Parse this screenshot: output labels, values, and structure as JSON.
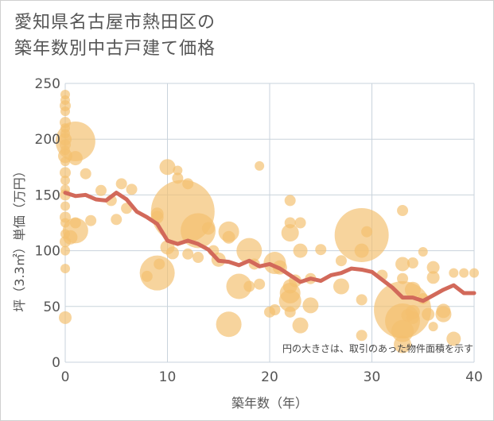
{
  "chart_data": {
    "type": "scatter",
    "title": "愛知県名古屋市熱田区の築年数別中古戸建て価格",
    "title_lines": [
      "愛知県名古屋市熱田区の",
      "築年数別中古戸建て価格"
    ],
    "xlabel": "築年数（年）",
    "ylabel": "坪（3.3㎡）単価（万円）",
    "xlim": [
      0,
      40
    ],
    "ylim": [
      0,
      250
    ],
    "x_ticks": [
      "0",
      "10",
      "20",
      "30",
      "40"
    ],
    "y_ticks": [
      "0",
      "50",
      "100",
      "150",
      "200",
      "250"
    ],
    "grid": true,
    "note": "円の大きさは、取引のあった物件面積を示す",
    "bubble_color": "#f3c06e",
    "line_color": "#d2695a",
    "bubbles": [
      {
        "x": 0,
        "y": 240,
        "s": 6
      },
      {
        "x": 0,
        "y": 235,
        "s": 6
      },
      {
        "x": 0,
        "y": 230,
        "s": 7
      },
      {
        "x": 0,
        "y": 225,
        "s": 6
      },
      {
        "x": 0,
        "y": 215,
        "s": 7
      },
      {
        "x": 0,
        "y": 210,
        "s": 6
      },
      {
        "x": 0,
        "y": 205,
        "s": 6
      },
      {
        "x": 0,
        "y": 200,
        "s": 8
      },
      {
        "x": 0,
        "y": 195,
        "s": 7
      },
      {
        "x": 0,
        "y": 190,
        "s": 6
      },
      {
        "x": 0,
        "y": 185,
        "s": 9
      },
      {
        "x": 0,
        "y": 180,
        "s": 6
      },
      {
        "x": 0,
        "y": 170,
        "s": 7
      },
      {
        "x": 0,
        "y": 163,
        "s": 6
      },
      {
        "x": 0,
        "y": 155,
        "s": 6
      },
      {
        "x": 0,
        "y": 150,
        "s": 7
      },
      {
        "x": 0,
        "y": 140,
        "s": 6
      },
      {
        "x": 0,
        "y": 130,
        "s": 7
      },
      {
        "x": 0,
        "y": 125,
        "s": 6
      },
      {
        "x": 0,
        "y": 115,
        "s": 6
      },
      {
        "x": 0,
        "y": 108,
        "s": 7
      },
      {
        "x": 0,
        "y": 100,
        "s": 6
      },
      {
        "x": 0,
        "y": 84,
        "s": 6
      },
      {
        "x": 0,
        "y": 40,
        "s": 8
      },
      {
        "x": 1,
        "y": 198,
        "s": 25
      },
      {
        "x": 1,
        "y": 183,
        "s": 9
      },
      {
        "x": 1,
        "y": 118,
        "s": 16
      },
      {
        "x": 1,
        "y": 125,
        "s": 7
      },
      {
        "x": 0.5,
        "y": 112,
        "s": 9
      },
      {
        "x": 2,
        "y": 169,
        "s": 7
      },
      {
        "x": 2.5,
        "y": 127,
        "s": 7
      },
      {
        "x": 3.5,
        "y": 154,
        "s": 7
      },
      {
        "x": 4.5,
        "y": 145,
        "s": 7
      },
      {
        "x": 5,
        "y": 128,
        "s": 7
      },
      {
        "x": 5.5,
        "y": 160,
        "s": 7
      },
      {
        "x": 6,
        "y": 138,
        "s": 7
      },
      {
        "x": 6.5,
        "y": 155,
        "s": 7
      },
      {
        "x": 9,
        "y": 130,
        "s": 8
      },
      {
        "x": 9,
        "y": 133,
        "s": 8
      },
      {
        "x": 9,
        "y": 80,
        "s": 22
      },
      {
        "x": 9.2,
        "y": 88,
        "s": 7
      },
      {
        "x": 8,
        "y": 77,
        "s": 7
      },
      {
        "x": 10,
        "y": 175,
        "s": 10
      },
      {
        "x": 10,
        "y": 103,
        "s": 9
      },
      {
        "x": 10.5,
        "y": 98,
        "s": 8
      },
      {
        "x": 11,
        "y": 165,
        "s": 7
      },
      {
        "x": 11,
        "y": 172,
        "s": 6
      },
      {
        "x": 11.5,
        "y": 135,
        "s": 40
      },
      {
        "x": 12,
        "y": 160,
        "s": 7
      },
      {
        "x": 12,
        "y": 97,
        "s": 7
      },
      {
        "x": 13,
        "y": 118,
        "s": 22
      },
      {
        "x": 13,
        "y": 94,
        "s": 7
      },
      {
        "x": 14,
        "y": 120,
        "s": 8
      },
      {
        "x": 14.5,
        "y": 100,
        "s": 7
      },
      {
        "x": 15,
        "y": 92,
        "s": 9
      },
      {
        "x": 16,
        "y": 117,
        "s": 13
      },
      {
        "x": 16,
        "y": 112,
        "s": 8
      },
      {
        "x": 16,
        "y": 34,
        "s": 16
      },
      {
        "x": 17,
        "y": 68,
        "s": 16
      },
      {
        "x": 18,
        "y": 100,
        "s": 16
      },
      {
        "x": 18,
        "y": 68,
        "s": 7
      },
      {
        "x": 18.5,
        "y": 88,
        "s": 7
      },
      {
        "x": 19,
        "y": 176,
        "s": 6
      },
      {
        "x": 19,
        "y": 70,
        "s": 7
      },
      {
        "x": 20,
        "y": 45,
        "s": 7
      },
      {
        "x": 20.5,
        "y": 89,
        "s": 14
      },
      {
        "x": 20.5,
        "y": 47,
        "s": 7
      },
      {
        "x": 21,
        "y": 85,
        "s": 9
      },
      {
        "x": 22,
        "y": 145,
        "s": 7
      },
      {
        "x": 22,
        "y": 125,
        "s": 7
      },
      {
        "x": 22,
        "y": 116,
        "s": 11
      },
      {
        "x": 22,
        "y": 68,
        "s": 9
      },
      {
        "x": 22,
        "y": 62,
        "s": 13
      },
      {
        "x": 22,
        "y": 55,
        "s": 14
      },
      {
        "x": 22,
        "y": 45,
        "s": 7
      },
      {
        "x": 22.5,
        "y": 73,
        "s": 8
      },
      {
        "x": 23,
        "y": 125,
        "s": 7
      },
      {
        "x": 23,
        "y": 100,
        "s": 9
      },
      {
        "x": 23,
        "y": 33,
        "s": 10
      },
      {
        "x": 24,
        "y": 75,
        "s": 7
      },
      {
        "x": 24,
        "y": 51,
        "s": 10
      },
      {
        "x": 25,
        "y": 101,
        "s": 7
      },
      {
        "x": 27,
        "y": 68,
        "s": 10
      },
      {
        "x": 27,
        "y": 91,
        "s": 7
      },
      {
        "x": 29,
        "y": 114,
        "s": 34
      },
      {
        "x": 29,
        "y": 100,
        "s": 9
      },
      {
        "x": 29,
        "y": 56,
        "s": 7
      },
      {
        "x": 29,
        "y": 24,
        "s": 7
      },
      {
        "x": 29.5,
        "y": 117,
        "s": 7
      },
      {
        "x": 31,
        "y": 78,
        "s": 7
      },
      {
        "x": 33,
        "y": 136,
        "s": 7
      },
      {
        "x": 33,
        "y": 88,
        "s": 9
      },
      {
        "x": 33,
        "y": 75,
        "s": 7
      },
      {
        "x": 33,
        "y": 47,
        "s": 36
      },
      {
        "x": 33,
        "y": 37,
        "s": 22
      },
      {
        "x": 33,
        "y": 28,
        "s": 14
      },
      {
        "x": 33,
        "y": 16,
        "s": 11
      },
      {
        "x": 33.5,
        "y": 42,
        "s": 8
      },
      {
        "x": 34,
        "y": 65,
        "s": 10
      },
      {
        "x": 34,
        "y": 45,
        "s": 9
      },
      {
        "x": 34,
        "y": 40,
        "s": 8
      },
      {
        "x": 34,
        "y": 89,
        "s": 7
      },
      {
        "x": 35,
        "y": 99,
        "s": 6
      },
      {
        "x": 35,
        "y": 57,
        "s": 7
      },
      {
        "x": 35.5,
        "y": 43,
        "s": 8
      },
      {
        "x": 36,
        "y": 85,
        "s": 8
      },
      {
        "x": 36,
        "y": 76,
        "s": 8
      },
      {
        "x": 36,
        "y": 32,
        "s": 6
      },
      {
        "x": 37,
        "y": 46,
        "s": 9
      },
      {
        "x": 37,
        "y": 43,
        "s": 10
      },
      {
        "x": 38,
        "y": 80,
        "s": 6
      },
      {
        "x": 38,
        "y": 21,
        "s": 9
      },
      {
        "x": 39,
        "y": 80,
        "s": 6
      },
      {
        "x": 40,
        "y": 80,
        "s": 6
      }
    ],
    "series": [
      {
        "type": "line",
        "x": [
          0,
          1,
          2,
          3,
          4,
          5,
          6,
          7,
          8,
          9,
          10,
          11,
          12,
          13,
          14,
          15,
          16,
          17,
          18,
          19,
          20,
          21,
          22,
          23,
          24,
          25,
          26,
          27,
          28,
          29,
          30,
          31,
          32,
          33,
          34,
          35,
          36,
          37,
          38,
          39,
          40
        ],
        "y": [
          152,
          149,
          150,
          146,
          145,
          152,
          146,
          135,
          130,
          124,
          109,
          106,
          109,
          106,
          101,
          91,
          90,
          87,
          91,
          86,
          88,
          84,
          78,
          72,
          75,
          73,
          78,
          80,
          84,
          83,
          81,
          74,
          67,
          58,
          58,
          55,
          60,
          65,
          69,
          62,
          62
        ]
      }
    ]
  }
}
